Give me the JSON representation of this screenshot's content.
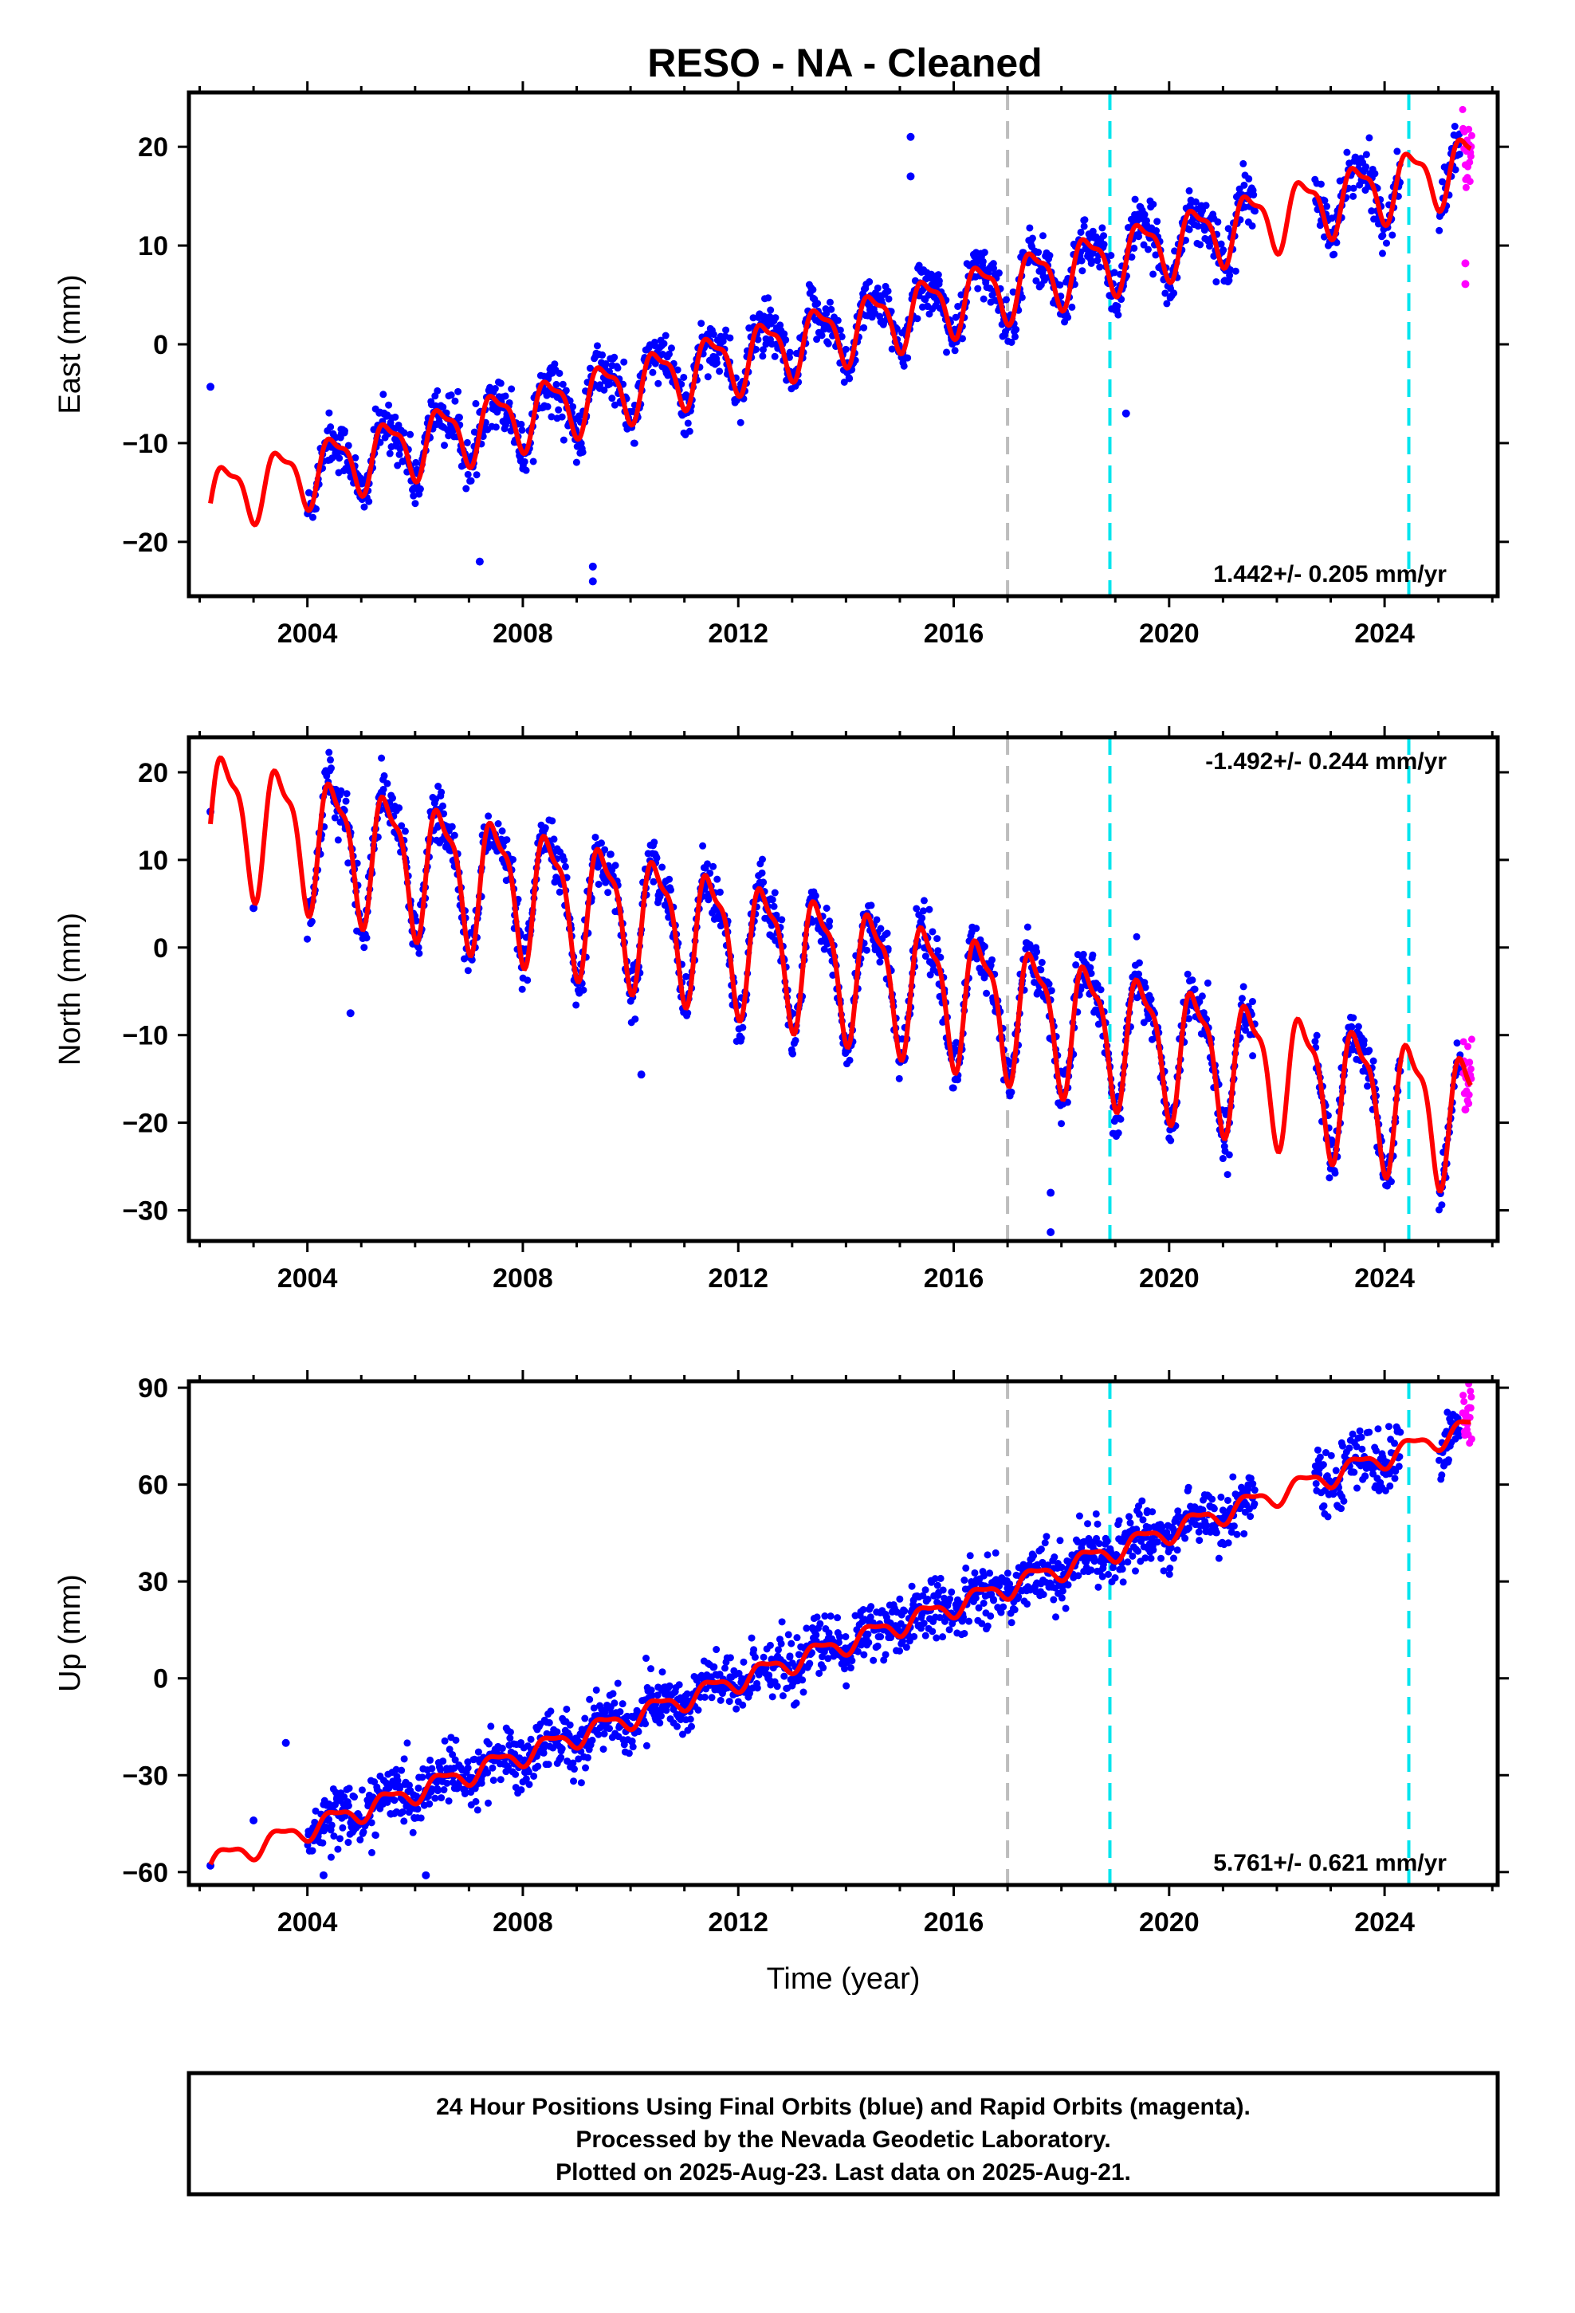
{
  "title": "RESO  - NA - Cleaned",
  "colors": {
    "final_orbits": "#0000ff",
    "rapid_orbits": "#ff00ff",
    "model": "#ff0000",
    "equipment_change": "#00e5ee",
    "other_event": "#bdbdbd"
  },
  "chart_data": [
    {
      "type": "scatter",
      "component": "East",
      "ylabel": "East (mm)",
      "xlabel": "",
      "xlim": [
        2001.8,
        2026.1
      ],
      "ylim": [
        -25.5,
        25.5
      ],
      "xticks": [
        "2004",
        "2008",
        "2012",
        "2016",
        "2020",
        "2024"
      ],
      "yticks": [
        "20",
        "10",
        "0",
        "−10",
        "−20"
      ],
      "ytick_values": [
        20,
        10,
        0,
        -10,
        -20
      ],
      "rate_label": "1.442+/- 0.205 mm/yr",
      "rate_position": "bottom-right",
      "trend": {
        "slope_mm_per_yr": 1.442,
        "value_at_2002_2": -15.5
      },
      "seasonal_amplitude": 3.0,
      "scatter": 1.3,
      "model_start": 2002.2,
      "model_end": 2025.6,
      "data_start": 2004.0,
      "data_end": 2025.4,
      "gaps": [
        [
          2021.6,
          2022.7
        ],
        [
          2024.3,
          2025.0
        ]
      ],
      "rapid_start": 2025.45,
      "event_lines": [
        {
          "x": 2017.0,
          "color": "#bdbdbd"
        },
        {
          "x": 2018.9,
          "color": "#00e5ee"
        },
        {
          "x": 2024.45,
          "color": "#00e5ee"
        }
      ],
      "outliers": [
        {
          "x": 2002.2,
          "y": -4.3
        },
        {
          "x": 2009.3,
          "y": -24
        },
        {
          "x": 2009.3,
          "y": -22.5
        },
        {
          "x": 2015.2,
          "y": 21
        },
        {
          "x": 2015.2,
          "y": 17
        },
        {
          "x": 2019.2,
          "y": -7
        },
        {
          "x": 2007.2,
          "y": -22
        },
        {
          "x": 2025.5,
          "y": 8.2
        },
        {
          "x": 2025.5,
          "y": 6.1
        }
      ]
    },
    {
      "type": "scatter",
      "component": "North",
      "ylabel": "North (mm)",
      "xlabel": "",
      "xlim": [
        2001.8,
        2026.1
      ],
      "ylim": [
        -33.5,
        24
      ],
      "xticks": [
        "2004",
        "2008",
        "2012",
        "2016",
        "2020",
        "2024"
      ],
      "yticks": [
        "20",
        "10",
        "0",
        "−10",
        "−20",
        "−30"
      ],
      "ytick_values": [
        20,
        10,
        0,
        -10,
        -20,
        -30
      ],
      "rate_label": "-1.492+/- 0.244 mm/yr",
      "rate_position": "top-right",
      "trend": {
        "slope_mm_per_yr": -1.492,
        "value_at_2002_2": 15.5
      },
      "seasonal_amplitude": 7.0,
      "scatter": 1.5,
      "model_start": 2002.2,
      "model_end": 2025.6,
      "data_start": 2004.0,
      "data_end": 2025.4,
      "gaps": [
        [
          2021.6,
          2022.7
        ],
        [
          2024.3,
          2025.0
        ]
      ],
      "rapid_start": 2025.45,
      "event_lines": [
        {
          "x": 2017.0,
          "color": "#bdbdbd"
        },
        {
          "x": 2018.9,
          "color": "#00e5ee"
        },
        {
          "x": 2024.45,
          "color": "#00e5ee"
        }
      ],
      "outliers": [
        {
          "x": 2002.2,
          "y": 15.5
        },
        {
          "x": 2003.0,
          "y": 4.5
        },
        {
          "x": 2004.8,
          "y": -7.5
        },
        {
          "x": 2017.8,
          "y": -28
        },
        {
          "x": 2017.8,
          "y": -32.5
        },
        {
          "x": 2010.2,
          "y": -14.5
        },
        {
          "x": 2025.5,
          "y": -18.5
        }
      ]
    },
    {
      "type": "scatter",
      "component": "Up",
      "ylabel": "Up (mm)",
      "xlabel": "Time (year)",
      "xlim": [
        2001.8,
        2026.1
      ],
      "ylim": [
        -64,
        92
      ],
      "xticks": [
        "2004",
        "2008",
        "2012",
        "2016",
        "2020",
        "2024"
      ],
      "yticks": [
        "90",
        "60",
        "30",
        "0",
        "−30",
        "−60"
      ],
      "ytick_values": [
        90,
        60,
        30,
        0,
        -30,
        -60
      ],
      "rate_label": "5.761+/- 0.621 mm/yr",
      "rate_position": "bottom-right",
      "trend": {
        "slope_mm_per_yr": 5.761,
        "value_at_2002_2": -57
      },
      "seasonal_amplitude": 3.0,
      "scatter": 4.5,
      "model_start": 2002.2,
      "model_end": 2025.6,
      "data_start": 2004.0,
      "data_end": 2025.4,
      "gaps": [
        [
          2021.6,
          2022.7
        ],
        [
          2024.3,
          2025.0
        ]
      ],
      "rapid_start": 2025.45,
      "event_lines": [
        {
          "x": 2017.0,
          "color": "#bdbdbd"
        },
        {
          "x": 2018.9,
          "color": "#00e5ee"
        },
        {
          "x": 2024.45,
          "color": "#00e5ee"
        }
      ],
      "outliers": [
        {
          "x": 2002.2,
          "y": -58
        },
        {
          "x": 2003.0,
          "y": -44
        },
        {
          "x": 2003.6,
          "y": -20
        },
        {
          "x": 2006.2,
          "y": -61
        },
        {
          "x": 2004.3,
          "y": -61
        },
        {
          "x": 2025.5,
          "y": 82
        }
      ]
    }
  ],
  "footer": {
    "line1": "24 Hour Positions Using Final Orbits (blue) and Rapid Orbits (magenta).",
    "line2": "Processed by the Nevada Geodetic Laboratory.",
    "line3": "Plotted on 2025-Aug-23. Last data on 2025-Aug-21."
  }
}
